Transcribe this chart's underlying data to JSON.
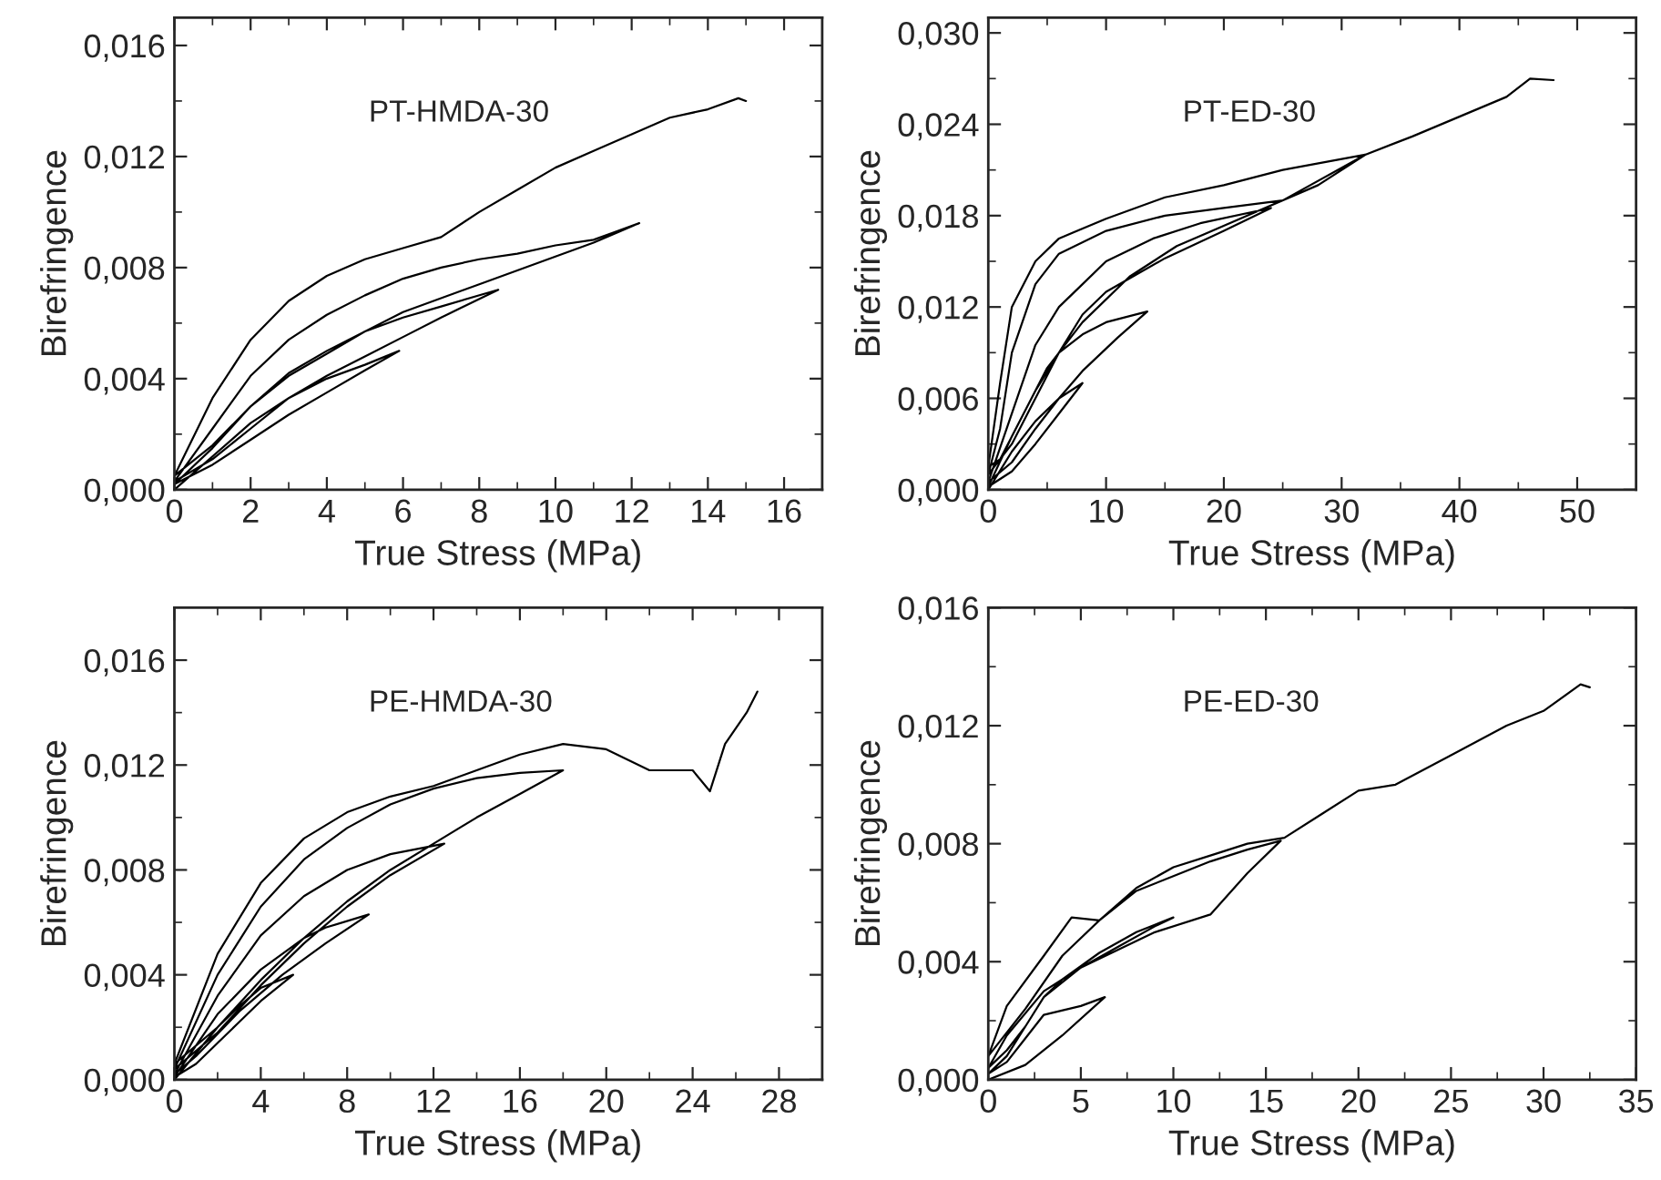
{
  "chart_data": [
    {
      "type": "line",
      "annotations": [
        "PT-HMDA-30"
      ],
      "xlabel": "True Stress (MPa)",
      "ylabel": "Birefringence",
      "xlim": [
        0,
        17
      ],
      "xticks": [
        0,
        2,
        4,
        6,
        8,
        10,
        12,
        14,
        16
      ],
      "ylim": [
        0,
        0.017
      ],
      "yticks": [
        {
          "value": 0,
          "label": "0,000"
        },
        {
          "value": 0.004,
          "label": "0,004"
        },
        {
          "value": 0.008,
          "label": "0,008"
        },
        {
          "value": 0.012,
          "label": "0,012"
        },
        {
          "value": 0.016,
          "label": "0,016"
        }
      ],
      "series": [
        {
          "color": "#000000",
          "x": [
            0,
            1,
            2,
            3,
            4,
            5,
            5.9,
            5,
            4,
            3,
            2,
            1,
            0,
            1,
            2,
            3,
            4,
            5,
            6,
            7,
            8.5,
            7,
            6,
            5,
            4,
            3,
            2,
            1,
            0,
            1,
            2,
            3,
            4,
            5,
            6,
            7,
            8,
            9,
            10,
            11,
            12.2,
            11,
            10,
            9,
            8,
            6,
            4,
            3,
            2,
            1,
            0,
            1,
            2,
            3,
            4,
            5,
            6,
            7,
            8,
            9,
            10,
            11,
            12,
            13,
            14,
            14.8,
            15
          ],
          "values": [
            0,
            0.0012,
            0.0024,
            0.0033,
            0.004,
            0.0045,
            0.005,
            0.0043,
            0.0035,
            0.0027,
            0.0018,
            0.0009,
            0.0002,
            0.0015,
            0.003,
            0.0041,
            0.0049,
            0.0057,
            0.0062,
            0.0066,
            0.0072,
            0.0062,
            0.0055,
            0.0048,
            0.0041,
            0.0033,
            0.0022,
            0.0011,
            0.0003,
            0.0022,
            0.0041,
            0.0054,
            0.0063,
            0.007,
            0.0076,
            0.008,
            0.0083,
            0.0085,
            0.0088,
            0.009,
            0.0096,
            0.0089,
            0.0084,
            0.0079,
            0.0074,
            0.0064,
            0.005,
            0.0042,
            0.003,
            0.0016,
            0.0005,
            0.0033,
            0.0054,
            0.0068,
            0.0077,
            0.0083,
            0.0087,
            0.0091,
            0.01,
            0.0108,
            0.0116,
            0.0122,
            0.0128,
            0.0134,
            0.0137,
            0.0141,
            0.014
          ]
        }
      ]
    },
    {
      "type": "line",
      "annotations": [
        "PT-ED-30"
      ],
      "xlabel": "True Stress (MPa)",
      "ylabel": "Birefringence",
      "xlim": [
        0,
        55
      ],
      "xticks": [
        0,
        10,
        20,
        30,
        40,
        50
      ],
      "ylim": [
        0,
        0.031
      ],
      "yticks": [
        {
          "value": 0,
          "label": "0,000"
        },
        {
          "value": 0.006,
          "label": "0,006"
        },
        {
          "value": 0.012,
          "label": "0,012"
        },
        {
          "value": 0.018,
          "label": "0,018"
        },
        {
          "value": 0.024,
          "label": "0,024"
        },
        {
          "value": 0.03,
          "label": "0,030"
        }
      ],
      "series": [
        {
          "color": "#000000",
          "x": [
            0,
            2,
            4,
            6,
            8,
            6,
            4,
            2,
            0,
            2,
            4,
            6,
            8,
            10,
            13.5,
            11,
            8,
            6,
            4,
            2,
            0,
            2,
            4,
            6,
            8,
            10,
            14,
            18,
            24,
            20,
            15,
            10,
            8,
            6,
            4,
            2,
            0,
            1,
            2,
            4,
            6,
            10,
            15,
            20,
            25,
            32,
            28,
            22,
            16,
            12,
            8,
            5,
            3,
            1,
            0,
            1,
            2,
            4,
            6,
            10,
            15,
            20,
            25,
            32,
            36,
            40,
            44,
            46,
            48
          ],
          "values": [
            0,
            0.0025,
            0.0045,
            0.006,
            0.007,
            0.005,
            0.003,
            0.0012,
            0.0002,
            0.0035,
            0.0065,
            0.009,
            0.0102,
            0.011,
            0.0117,
            0.01,
            0.0078,
            0.006,
            0.004,
            0.0018,
            0.0005,
            0.005,
            0.0095,
            0.012,
            0.0135,
            0.015,
            0.0165,
            0.0175,
            0.0185,
            0.017,
            0.0152,
            0.013,
            0.0115,
            0.009,
            0.006,
            0.003,
            0.001,
            0.004,
            0.009,
            0.0135,
            0.0155,
            0.017,
            0.018,
            0.0185,
            0.019,
            0.022,
            0.02,
            0.018,
            0.016,
            0.014,
            0.011,
            0.008,
            0.005,
            0.002,
            0.0015,
            0.007,
            0.012,
            0.015,
            0.0165,
            0.0178,
            0.0192,
            0.02,
            0.021,
            0.022,
            0.0232,
            0.0245,
            0.0258,
            0.027,
            0.0269
          ]
        }
      ]
    },
    {
      "type": "line",
      "annotations": [
        "PE-HMDA-30"
      ],
      "xlabel": "True Stress (MPa)",
      "ylabel": "Birefringence",
      "xlim": [
        0,
        30
      ],
      "xticks": [
        0,
        4,
        8,
        12,
        16,
        20,
        24,
        28
      ],
      "ylim": [
        0,
        0.018
      ],
      "yticks": [
        {
          "value": 0,
          "label": "0,000"
        },
        {
          "value": 0.004,
          "label": "0,004"
        },
        {
          "value": 0.008,
          "label": "0,008"
        },
        {
          "value": 0.012,
          "label": "0,012"
        },
        {
          "value": 0.016,
          "label": "0,016"
        }
      ],
      "series": [
        {
          "color": "#000000",
          "x": [
            0,
            1,
            2,
            3,
            4,
            5.5,
            4,
            3,
            2,
            1,
            0,
            2,
            4,
            6,
            7,
            9,
            7,
            5,
            3,
            1,
            0,
            2,
            4,
            6,
            8,
            10,
            12.5,
            10,
            8,
            6,
            4,
            2,
            0,
            2,
            4,
            6,
            8,
            10,
            12,
            14,
            16,
            18,
            16,
            14,
            12,
            10,
            8,
            6,
            4,
            2,
            0,
            2,
            4,
            6,
            8,
            10,
            12,
            14,
            16,
            18,
            20,
            22,
            24,
            24.8,
            25.5,
            26.5,
            27
          ],
          "values": [
            0,
            0.001,
            0.002,
            0.0028,
            0.0035,
            0.004,
            0.003,
            0.0022,
            0.0014,
            0.0006,
            0.0001,
            0.0025,
            0.0042,
            0.0054,
            0.0058,
            0.0063,
            0.0052,
            0.004,
            0.0026,
            0.0009,
            0.0002,
            0.0032,
            0.0055,
            0.007,
            0.008,
            0.0086,
            0.009,
            0.0078,
            0.0066,
            0.0052,
            0.0036,
            0.0018,
            0.0004,
            0.004,
            0.0066,
            0.0084,
            0.0096,
            0.0105,
            0.0111,
            0.0115,
            0.0117,
            0.0118,
            0.0109,
            0.01,
            0.009,
            0.008,
            0.0068,
            0.0054,
            0.0038,
            0.002,
            0.0006,
            0.0048,
            0.0075,
            0.0092,
            0.0102,
            0.0108,
            0.0112,
            0.0118,
            0.0124,
            0.0128,
            0.0126,
            0.0118,
            0.0118,
            0.011,
            0.0128,
            0.014,
            0.0148
          ]
        }
      ]
    },
    {
      "type": "line",
      "annotations": [
        "PE-ED-30"
      ],
      "xlabel": "True Stress (MPa)",
      "ylabel": "Birefringence",
      "xlim": [
        0,
        35
      ],
      "xticks": [
        0,
        5,
        10,
        15,
        20,
        25,
        30,
        35
      ],
      "ylim": [
        0,
        0.016
      ],
      "yticks": [
        {
          "value": 0,
          "label": "0,000"
        },
        {
          "value": 0.004,
          "label": "0,004"
        },
        {
          "value": 0.008,
          "label": "0,008"
        },
        {
          "value": 0.012,
          "label": "0,012"
        },
        {
          "value": 0.016,
          "label": "0,016"
        }
      ],
      "series": [
        {
          "color": "#000000",
          "x": [
            0,
            2,
            4,
            6.3,
            5,
            3,
            2,
            1,
            0,
            1,
            2,
            3,
            5,
            7,
            9,
            10,
            8,
            6,
            4,
            3,
            2,
            1,
            0,
            1,
            3,
            5,
            7,
            9,
            12,
            14,
            15.8,
            14,
            12,
            10,
            8,
            6,
            4,
            2,
            0,
            1,
            3,
            4.5,
            6,
            8,
            10,
            12,
            14,
            16,
            18,
            20,
            22,
            25,
            28,
            30,
            32,
            32.5
          ],
          "values": [
            0,
            0.0005,
            0.0015,
            0.0028,
            0.0025,
            0.0022,
            0.0014,
            0.0006,
            0.0002,
            0.0008,
            0.0018,
            0.0028,
            0.0038,
            0.0045,
            0.0052,
            0.0055,
            0.005,
            0.0043,
            0.0034,
            0.0028,
            0.0018,
            0.001,
            0.0004,
            0.0015,
            0.003,
            0.0038,
            0.0044,
            0.005,
            0.0056,
            0.007,
            0.0081,
            0.0078,
            0.0074,
            0.0069,
            0.0064,
            0.0054,
            0.0042,
            0.0024,
            0.0008,
            0.0025,
            0.0042,
            0.0055,
            0.0054,
            0.0065,
            0.0072,
            0.0076,
            0.008,
            0.0082,
            0.009,
            0.0098,
            0.01,
            0.011,
            0.012,
            0.0125,
            0.0134,
            0.0133
          ]
        }
      ]
    }
  ]
}
